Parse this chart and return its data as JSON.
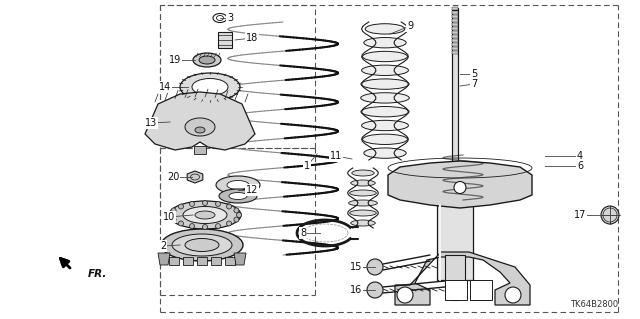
{
  "bg_color": "#ffffff",
  "line_color": "#1a1a1a",
  "diagram_id": "TK64B2800",
  "figsize": [
    6.4,
    3.19
  ],
  "dpi": 100,
  "box_color": "#444444",
  "label_fontsize": 7.0,
  "parts_color": "#222222",
  "gray_fill": "#cccccc",
  "light_gray": "#e8e8e8",
  "mid_gray": "#aaaaaa"
}
